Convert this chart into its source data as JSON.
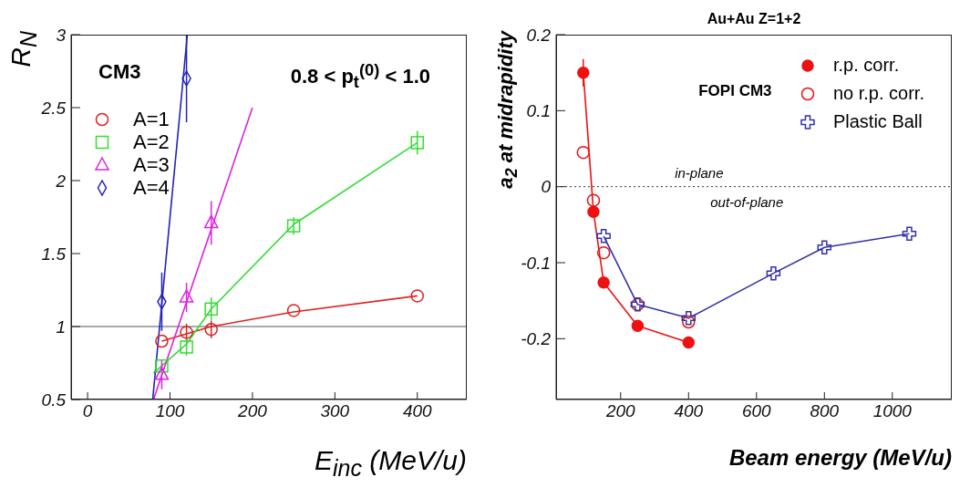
{
  "chart_data": [
    {
      "type": "scatter",
      "xlabel": "E$_{inc}$ (MeV/u)",
      "ylabel": "R$_{N}$",
      "xlim": [
        -20,
        460
      ],
      "ylim": [
        0.5,
        3
      ],
      "xticks": [
        0,
        100,
        200,
        300,
        400
      ],
      "yticks": [
        0.5,
        1,
        1.5,
        2,
        2.5,
        3
      ],
      "legend": "top left",
      "annotations": [
        "CM3",
        "0.8 < p$_{t}$$^{(0)}$ < 1.0"
      ],
      "ref_lines": [
        {
          "axis": "y",
          "value": 1,
          "color": "#555555"
        }
      ],
      "series": [
        {
          "name": "A=1",
          "marker": "circle",
          "color": "#dd2222",
          "x": [
            90,
            120,
            150,
            250,
            400
          ],
          "values": [
            0.9,
            0.96,
            0.98,
            1.11,
            1.21
          ],
          "errors": [
            null,
            0.06,
            0.06,
            null,
            null
          ]
        },
        {
          "type": "line",
          "marker": "none",
          "color": "#dd2222",
          "x": [
            90,
            150,
            250,
            400
          ],
          "values": [
            0.9,
            1.0,
            1.1,
            1.21
          ]
        },
        {
          "name": "A=2",
          "marker": "square",
          "color": "#33dd33",
          "x": [
            90,
            120,
            150,
            250,
            400
          ],
          "values": [
            0.73,
            0.86,
            1.12,
            1.69,
            2.26
          ],
          "errors": [
            null,
            0.06,
            0.08,
            0.06,
            0.08
          ]
        },
        {
          "type": "line",
          "marker": "none",
          "color": "#33dd33",
          "x": [
            80,
            120,
            150,
            250,
            400
          ],
          "values": [
            0.68,
            0.88,
            1.12,
            1.7,
            2.26
          ]
        },
        {
          "name": "A=3",
          "marker": "triangle",
          "color": "#dd22dd",
          "x": [
            90,
            120,
            150
          ],
          "values": [
            0.67,
            1.2,
            1.71
          ],
          "errors": [
            0.1,
            0.1,
            0.15
          ]
        },
        {
          "type": "line",
          "marker": "none",
          "color": "#dd22dd",
          "x": [
            80,
            200
          ],
          "values": [
            0.5,
            2.5
          ]
        },
        {
          "name": "A=4",
          "marker": "diamond",
          "color": "#2222bb",
          "x": [
            90,
            120
          ],
          "values": [
            1.17,
            2.7
          ],
          "errors": [
            0.2,
            0.3
          ]
        },
        {
          "type": "line",
          "marker": "none",
          "color": "#2222bb",
          "x": [
            79,
            121
          ],
          "values": [
            0.5,
            3
          ]
        }
      ]
    },
    {
      "type": "line",
      "title": "Au+Au Z=1+2",
      "xlabel": "Beam energy (MeV/u)",
      "ylabel": "a$_{2}$ at midrapidity",
      "xlim": [
        10,
        1175
      ],
      "ylim": [
        -0.28,
        0.2
      ],
      "xticks": [
        200,
        400,
        600,
        800,
        1000
      ],
      "yticks": [
        -0.2,
        -0.1,
        0,
        0.1,
        0.2
      ],
      "legend": "top right",
      "annotations": [
        "FOPI CM3",
        "in-plane",
        "out-of-plane"
      ],
      "ref_lines": [
        {
          "axis": "y",
          "value": 0,
          "line_style": "dotted",
          "color": "#333333"
        }
      ],
      "series": [
        {
          "name": "r.p. corr.",
          "marker": "circle",
          "color": "#ee1111",
          "x": [
            90,
            120,
            150,
            250,
            400
          ],
          "values": [
            0.15,
            -0.033,
            -0.126,
            -0.183,
            -0.205
          ],
          "errors": [
            0.018,
            null,
            null,
            null,
            null
          ]
        },
        {
          "name": "no r.p. corr.",
          "type": "scatter",
          "marker": "circle",
          "color": "#ee1111",
          "x": [
            90,
            120,
            150,
            250,
            400
          ],
          "values": [
            0.045,
            -0.018,
            -0.087,
            -0.155,
            -0.178
          ]
        },
        {
          "name": "Plastic Ball",
          "marker": "cross",
          "color": "#3333aa",
          "x": [
            150,
            250,
            400,
            650,
            800,
            1050
          ],
          "values": [
            -0.065,
            -0.155,
            -0.173,
            -0.114,
            -0.08,
            -0.062
          ]
        }
      ]
    }
  ]
}
